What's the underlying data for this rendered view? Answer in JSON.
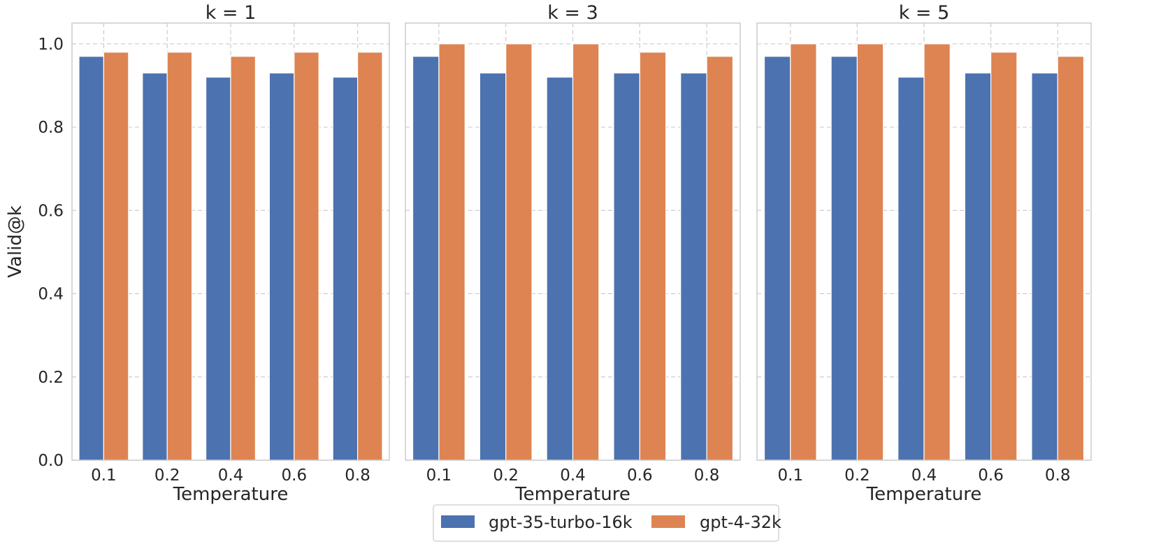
{
  "chart_data": {
    "type": "bar",
    "ylabel": "Valid@k",
    "ylim": [
      0,
      1.05
    ],
    "yticks": [
      0.0,
      0.2,
      0.4,
      0.6,
      0.8,
      1.0
    ],
    "grid": true,
    "legend_position": "bottom-center",
    "series_colors": [
      "#4c72b0",
      "#dd8452"
    ],
    "legend": [
      "gpt-35-turbo-16k",
      "gpt-4-32k"
    ],
    "panels": [
      {
        "title": "k = 1",
        "xlabel": "Temperature",
        "categories": [
          "0.1",
          "0.2",
          "0.4",
          "0.6",
          "0.8"
        ],
        "series": [
          {
            "name": "gpt-35-turbo-16k",
            "values": [
              0.97,
              0.93,
              0.92,
              0.93,
              0.92
            ]
          },
          {
            "name": "gpt-4-32k",
            "values": [
              0.98,
              0.98,
              0.97,
              0.98,
              0.98
            ]
          }
        ]
      },
      {
        "title": "k = 3",
        "xlabel": "Temperature",
        "categories": [
          "0.1",
          "0.2",
          "0.4",
          "0.6",
          "0.8"
        ],
        "series": [
          {
            "name": "gpt-35-turbo-16k",
            "values": [
              0.97,
              0.93,
              0.92,
              0.93,
              0.93
            ]
          },
          {
            "name": "gpt-4-32k",
            "values": [
              1.0,
              1.0,
              1.0,
              0.98,
              0.97
            ]
          }
        ]
      },
      {
        "title": "k = 5",
        "xlabel": "Temperature",
        "categories": [
          "0.1",
          "0.2",
          "0.4",
          "0.6",
          "0.8"
        ],
        "series": [
          {
            "name": "gpt-35-turbo-16k",
            "values": [
              0.97,
              0.97,
              0.92,
              0.93,
              0.93
            ]
          },
          {
            "name": "gpt-4-32k",
            "values": [
              1.0,
              1.0,
              1.0,
              0.98,
              0.97
            ]
          }
        ]
      }
    ]
  }
}
